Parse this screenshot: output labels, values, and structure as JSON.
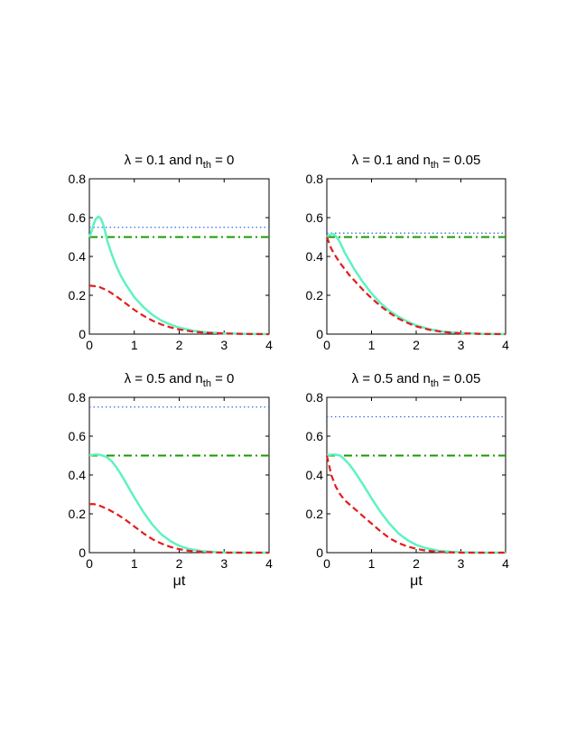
{
  "colors": {
    "dotted": "#4169e1",
    "dashdot": "#1a9a00",
    "solid": "#5ff2c2",
    "dashed": "#e61b1b"
  },
  "chart_data": [
    {
      "type": "line",
      "title": {
        "prefix": "λ = 0.1 and n",
        "sub": "th",
        "suffix": " = 0"
      },
      "xlabel": "",
      "xlim": [
        0,
        4
      ],
      "ylim": [
        0,
        0.8
      ],
      "xticks": [
        "0",
        "1",
        "2",
        "3",
        "4"
      ],
      "yticks": [
        "0",
        "0.2",
        "0.4",
        "0.6",
        "0.8"
      ],
      "series": [
        {
          "style": "dotted",
          "x": [
            0,
            4
          ],
          "y": [
            0.55,
            0.55
          ]
        },
        {
          "style": "dashdot",
          "x": [
            0,
            4
          ],
          "y": [
            0.5,
            0.5
          ]
        },
        {
          "style": "solid",
          "x": [
            0,
            0.05,
            0.1,
            0.15,
            0.2,
            0.25,
            0.3,
            0.35,
            0.4,
            0.5,
            0.6,
            0.7,
            0.8,
            1.0,
            1.2,
            1.4,
            1.6,
            1.8,
            2.0,
            2.3,
            2.6,
            3.0,
            3.5,
            4.0
          ],
          "y": [
            0.5,
            0.53,
            0.57,
            0.595,
            0.605,
            0.597,
            0.57,
            0.53,
            0.48,
            0.41,
            0.35,
            0.3,
            0.26,
            0.19,
            0.14,
            0.1,
            0.07,
            0.05,
            0.033,
            0.018,
            0.009,
            0.004,
            0.001,
            0.0
          ]
        },
        {
          "style": "dashed",
          "x": [
            0,
            0.2,
            0.4,
            0.6,
            0.8,
            1.0,
            1.2,
            1.4,
            1.6,
            1.8,
            2.0,
            2.3,
            2.6,
            3.0,
            3.5,
            4.0
          ],
          "y": [
            0.25,
            0.245,
            0.225,
            0.195,
            0.16,
            0.125,
            0.095,
            0.07,
            0.05,
            0.035,
            0.024,
            0.013,
            0.007,
            0.003,
            0.001,
            0.0
          ]
        }
      ]
    },
    {
      "type": "line",
      "title": {
        "prefix": "λ = 0.1 and n",
        "sub": "th",
        "suffix": " = 0.05"
      },
      "xlabel": "",
      "xlim": [
        0,
        4
      ],
      "ylim": [
        0,
        0.8
      ],
      "xticks": [
        "0",
        "1",
        "2",
        "3",
        "4"
      ],
      "yticks": [
        "0",
        "0.2",
        "0.4",
        "0.6",
        "0.8"
      ],
      "series": [
        {
          "style": "dotted",
          "x": [
            0,
            4
          ],
          "y": [
            0.52,
            0.52
          ]
        },
        {
          "style": "dashdot",
          "x": [
            0,
            4
          ],
          "y": [
            0.5,
            0.5
          ]
        },
        {
          "style": "solid",
          "x": [
            0,
            0.05,
            0.1,
            0.15,
            0.2,
            0.25,
            0.3,
            0.4,
            0.5,
            0.6,
            0.8,
            1.0,
            1.2,
            1.4,
            1.6,
            1.8,
            2.0,
            2.3,
            2.6,
            3.0,
            3.5,
            4.0
          ],
          "y": [
            0.5,
            0.51,
            0.515,
            0.515,
            0.505,
            0.49,
            0.47,
            0.42,
            0.38,
            0.34,
            0.27,
            0.21,
            0.16,
            0.12,
            0.09,
            0.065,
            0.045,
            0.025,
            0.013,
            0.005,
            0.001,
            0.0
          ]
        },
        {
          "style": "dashed",
          "x": [
            0,
            0.05,
            0.1,
            0.2,
            0.3,
            0.4,
            0.5,
            0.6,
            0.8,
            1.0,
            1.2,
            1.4,
            1.6,
            1.8,
            2.0,
            2.3,
            2.6,
            3.0,
            3.5,
            4.0
          ],
          "y": [
            0.5,
            0.47,
            0.44,
            0.4,
            0.365,
            0.335,
            0.305,
            0.28,
            0.23,
            0.185,
            0.145,
            0.11,
            0.08,
            0.058,
            0.04,
            0.022,
            0.011,
            0.004,
            0.001,
            0.0
          ]
        }
      ]
    },
    {
      "type": "line",
      "title": {
        "prefix": "λ = 0.5 and n",
        "sub": "th",
        "suffix": " = 0"
      },
      "xlabel": "μt",
      "xlim": [
        0,
        4
      ],
      "ylim": [
        0,
        0.8
      ],
      "xticks": [
        "0",
        "1",
        "2",
        "3",
        "4"
      ],
      "yticks": [
        "0",
        "0.2",
        "0.4",
        "0.6",
        "0.8"
      ],
      "series": [
        {
          "style": "dotted",
          "x": [
            0,
            4
          ],
          "y": [
            0.75,
            0.75
          ]
        },
        {
          "style": "dashdot",
          "x": [
            0,
            4
          ],
          "y": [
            0.5,
            0.5
          ]
        },
        {
          "style": "solid",
          "x": [
            0,
            0.1,
            0.2,
            0.3,
            0.4,
            0.5,
            0.6,
            0.7,
            0.8,
            1.0,
            1.2,
            1.4,
            1.6,
            1.8,
            2.0,
            2.2,
            2.5,
            2.8,
            3.0,
            3.5,
            4.0
          ],
          "y": [
            0.5,
            0.505,
            0.505,
            0.5,
            0.49,
            0.47,
            0.44,
            0.405,
            0.365,
            0.285,
            0.21,
            0.145,
            0.095,
            0.06,
            0.035,
            0.02,
            0.008,
            0.003,
            0.001,
            0.0,
            0.0
          ]
        },
        {
          "style": "dashed",
          "x": [
            0,
            0.1,
            0.2,
            0.3,
            0.4,
            0.6,
            0.8,
            1.0,
            1.2,
            1.4,
            1.6,
            1.8,
            2.0,
            2.2,
            2.5,
            2.8,
            3.0,
            3.5,
            4.0
          ],
          "y": [
            0.25,
            0.25,
            0.245,
            0.235,
            0.225,
            0.2,
            0.17,
            0.135,
            0.1,
            0.07,
            0.047,
            0.03,
            0.018,
            0.01,
            0.004,
            0.001,
            0.0,
            0.0,
            0.0
          ]
        }
      ]
    },
    {
      "type": "line",
      "title": {
        "prefix": "λ = 0.5 and n",
        "sub": "th",
        "suffix": " = 0.05"
      },
      "xlabel": "μt",
      "xlim": [
        0,
        4
      ],
      "ylim": [
        0,
        0.8
      ],
      "xticks": [
        "0",
        "1",
        "2",
        "3",
        "4"
      ],
      "yticks": [
        "0",
        "0.2",
        "0.4",
        "0.6",
        "0.8"
      ],
      "series": [
        {
          "style": "dotted",
          "x": [
            0,
            4
          ],
          "y": [
            0.7,
            0.7
          ]
        },
        {
          "style": "dashdot",
          "x": [
            0,
            4
          ],
          "y": [
            0.5,
            0.5
          ]
        },
        {
          "style": "solid",
          "x": [
            0,
            0.1,
            0.2,
            0.3,
            0.4,
            0.5,
            0.6,
            0.8,
            1.0,
            1.2,
            1.4,
            1.6,
            1.8,
            2.0,
            2.2,
            2.5,
            2.8,
            3.0,
            3.5,
            4.0
          ],
          "y": [
            0.5,
            0.505,
            0.505,
            0.5,
            0.48,
            0.455,
            0.425,
            0.355,
            0.28,
            0.21,
            0.15,
            0.1,
            0.065,
            0.04,
            0.024,
            0.01,
            0.004,
            0.002,
            0.0,
            0.0
          ]
        },
        {
          "style": "dashed",
          "x": [
            0,
            0.05,
            0.1,
            0.2,
            0.3,
            0.4,
            0.5,
            0.6,
            0.8,
            1.0,
            1.2,
            1.4,
            1.6,
            1.8,
            2.0,
            2.2,
            2.5,
            2.8,
            3.0,
            3.5,
            4.0
          ],
          "y": [
            0.5,
            0.45,
            0.4,
            0.34,
            0.3,
            0.27,
            0.25,
            0.23,
            0.19,
            0.15,
            0.11,
            0.075,
            0.05,
            0.032,
            0.02,
            0.011,
            0.004,
            0.001,
            0.0,
            0.0,
            0.0
          ]
        }
      ]
    }
  ]
}
